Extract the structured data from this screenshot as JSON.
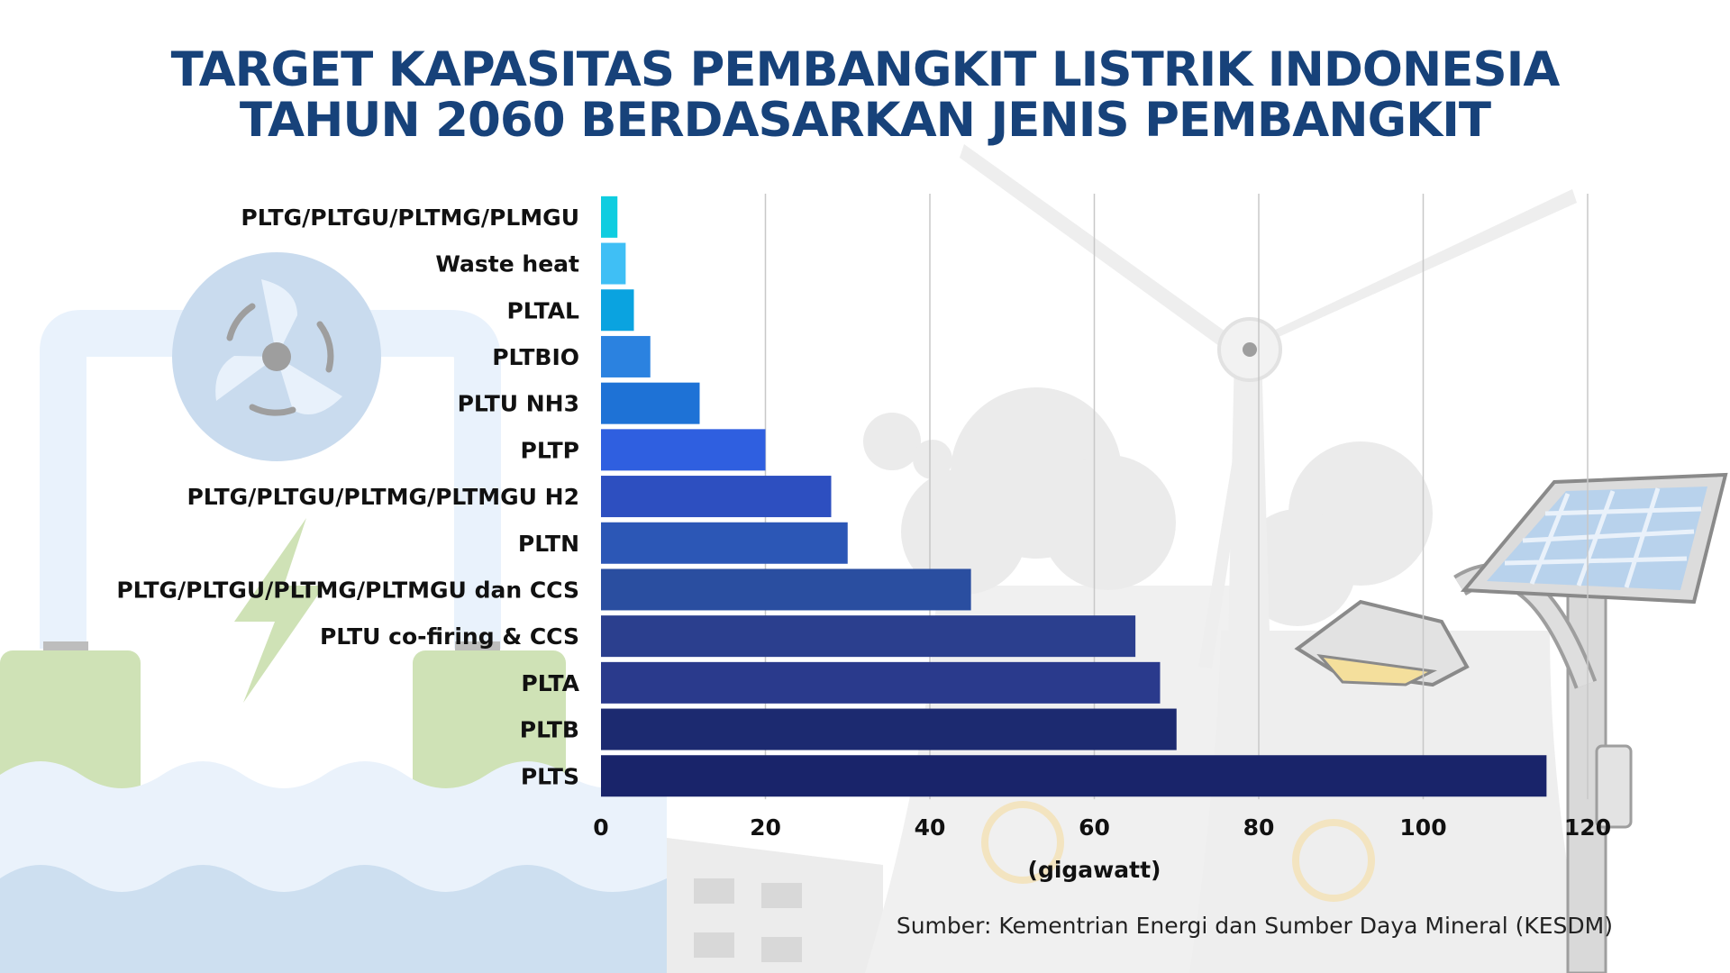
{
  "title_line1": "TARGET KAPASITAS PEMBANGKIT LISTRIK INDONESIA",
  "title_line2": "TAHUN 2060 BERDASARKAN JENIS PEMBANGKIT",
  "source": "Sumber: Kementrian Energi dan Sumber Daya Mineral (KESDM)",
  "chart_data": {
    "type": "bar",
    "orientation": "horizontal",
    "categories": [
      "PLTG/PLTGU/PLTMG/PLMGU",
      "Waste heat",
      "PLTAL",
      "PLTBIO",
      "PLTU NH3",
      "PLTP",
      "PLTG/PLTGU/PLTMG/PLTMGU H2",
      "PLTN",
      "PLTG/PLTGU/PLTMG/PLTMGU dan CCS",
      "PLTU co-firing & CCS",
      "PLTA",
      "PLTB",
      "PLTS"
    ],
    "values": [
      2,
      3,
      4,
      6,
      12,
      20,
      28,
      30,
      45,
      65,
      68,
      70,
      115
    ],
    "colors": [
      "#0fcde0",
      "#3fbff5",
      "#0aa3e0",
      "#2b82e0",
      "#1e72d6",
      "#2f5fe0",
      "#2d4fc0",
      "#2c57b6",
      "#2a4ea0",
      "#2b3f8e",
      "#2a3a8c",
      "#1c2a70",
      "#19246a"
    ],
    "xlabel": "(gigawatt)",
    "ylabel": "",
    "xlim": [
      0,
      120
    ],
    "xticks": [
      0,
      20,
      40,
      60,
      80,
      100,
      120
    ],
    "grid": true
  }
}
